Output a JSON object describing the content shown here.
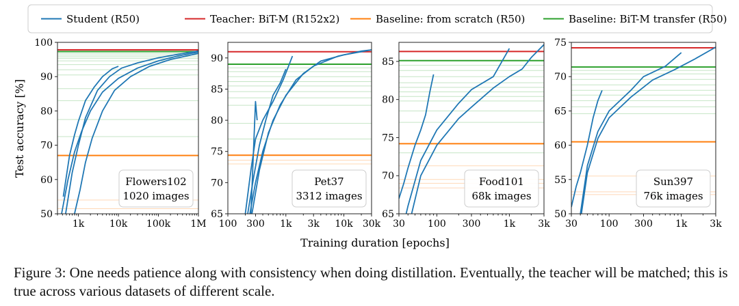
{
  "legend": [
    {
      "label": "Student (R50)",
      "color": "#1f77b4"
    },
    {
      "label": "Teacher: BiT-M (R152x2)",
      "color": "#d62728"
    },
    {
      "label": "Baseline: from scratch (R50)",
      "color": "#ff7f0e"
    },
    {
      "label": "Baseline: BiT-M transfer (R50)",
      "color": "#2ca02c"
    }
  ],
  "xlabel": "Training duration [epochs]",
  "ylabel": "Test accuracy [%]",
  "caption": "Figure 3: One needs patience along with consistency when doing distillation. Eventually, the teacher will be matched; this is true across various datasets of different scale.",
  "chart_data": [
    {
      "type": "line",
      "xscale": "log",
      "box_line1": "Flowers102",
      "box_line2": "1020 images",
      "xlim": [
        300,
        1000000
      ],
      "ylim": [
        50,
        100
      ],
      "xticks": [
        1000,
        10000,
        100000,
        1000000
      ],
      "xtick_labels": [
        "1k",
        "10k",
        "100k",
        "1M"
      ],
      "yticks": [
        50,
        60,
        70,
        80,
        90,
        100
      ],
      "ytick_labels": [
        "50",
        "60",
        "70",
        "80",
        "90",
        "100"
      ],
      "teacher": 97.8,
      "transfer": 97.3,
      "scratch": 67.0,
      "transfer_faint": [
        96.8,
        96.3,
        95.8,
        95.3,
        94.6,
        93.5,
        92.0,
        90.5,
        86.5,
        83.0,
        77.5,
        72.5
      ],
      "scratch_faint": [
        54.0,
        51.5
      ],
      "student_runs": [
        [
          [
            420,
            55
          ],
          [
            600,
            67
          ],
          [
            800,
            73
          ],
          [
            1000,
            77
          ],
          [
            1500,
            83
          ],
          [
            2500,
            87
          ],
          [
            4000,
            90
          ],
          [
            7000,
            92.3
          ],
          [
            10000,
            93
          ]
        ],
        [
          [
            480,
            50
          ],
          [
            700,
            62
          ],
          [
            1000,
            70
          ],
          [
            1500,
            78
          ],
          [
            3000,
            86
          ],
          [
            6000,
            90
          ],
          [
            12000,
            92.5
          ],
          [
            30000,
            94
          ],
          [
            100000,
            95.5
          ],
          [
            300000,
            96.5
          ],
          [
            1000000,
            97.5
          ]
        ],
        [
          [
            380,
            50
          ],
          [
            550,
            60
          ],
          [
            800,
            68
          ],
          [
            1200,
            74
          ],
          [
            2000,
            80
          ],
          [
            4000,
            85.5
          ],
          [
            10000,
            89.5
          ],
          [
            30000,
            92.5
          ],
          [
            100000,
            94.6
          ],
          [
            300000,
            96
          ],
          [
            1000000,
            97.2
          ]
        ],
        [
          [
            800,
            50
          ],
          [
            1100,
            57
          ],
          [
            1500,
            65
          ],
          [
            2200,
            72
          ],
          [
            4000,
            80
          ],
          [
            8000,
            86
          ],
          [
            20000,
            90
          ],
          [
            60000,
            93
          ],
          [
            200000,
            95
          ],
          [
            1000000,
            96.8
          ]
        ]
      ]
    },
    {
      "type": "line",
      "xscale": "log",
      "box_line1": "Pet37",
      "box_line2": "3312 images",
      "xlim": [
        100,
        30000
      ],
      "ylim": [
        65,
        92.5
      ],
      "xticks": [
        100,
        300,
        1000,
        3000,
        10000,
        30000
      ],
      "xtick_labels": [
        "100",
        "300",
        "1k",
        "3k",
        "10k",
        "30k"
      ],
      "yticks": [
        65,
        70,
        75,
        80,
        85,
        90
      ],
      "ytick_labels": [
        "65",
        "70",
        "75",
        "80",
        "85",
        "90"
      ],
      "teacher": 91.0,
      "transfer": 89.0,
      "scratch": 74.4,
      "transfer_faint": [
        88.4,
        87.8,
        87.0,
        86.2,
        85.5,
        84.6,
        83.6,
        82.4,
        79.5,
        77.0
      ],
      "scratch_faint": [
        73.6,
        73.0
      ],
      "student_runs": [
        [
          [
            250,
            65
          ],
          [
            300,
            83
          ],
          [
            320,
            80
          ]
        ],
        [
          [
            200,
            65
          ],
          [
            250,
            72
          ],
          [
            300,
            77
          ],
          [
            400,
            80
          ],
          [
            600,
            83
          ],
          [
            900,
            86.5
          ],
          [
            1300,
            90.3
          ]
        ],
        [
          [
            220,
            65
          ],
          [
            280,
            71
          ],
          [
            350,
            76
          ],
          [
            450,
            80
          ],
          [
            600,
            84
          ],
          [
            800,
            86
          ],
          [
            1000,
            88.2
          ]
        ],
        [
          [
            240,
            65
          ],
          [
            300,
            70
          ],
          [
            400,
            75
          ],
          [
            600,
            80
          ],
          [
            1000,
            84
          ],
          [
            2000,
            87.5
          ],
          [
            4000,
            89.5
          ],
          [
            10000,
            90.5
          ],
          [
            30000,
            91.3
          ]
        ],
        [
          [
            260,
            65
          ],
          [
            350,
            72
          ],
          [
            500,
            78
          ],
          [
            800,
            82.5
          ],
          [
            1500,
            86.5
          ],
          [
            3000,
            88.7
          ],
          [
            8000,
            90.3
          ],
          [
            20000,
            91.1
          ],
          [
            30000,
            91.3
          ]
        ]
      ]
    },
    {
      "type": "line",
      "xscale": "log",
      "box_line1": "Food101",
      "box_line2": "68k images",
      "xlim": [
        30,
        3000
      ],
      "ylim": [
        65,
        87.5
      ],
      "xticks": [
        30,
        100,
        300,
        1000,
        3000
      ],
      "xtick_labels": [
        "30",
        "100",
        "300",
        "1k",
        "3k"
      ],
      "yticks": [
        65,
        70,
        75,
        80,
        85
      ],
      "ytick_labels": [
        "65",
        "70",
        "75",
        "80",
        "85"
      ],
      "teacher": 86.3,
      "transfer": 85.1,
      "scratch": 74.2,
      "transfer_faint": [
        84.5,
        83.8,
        83.0,
        82.2,
        81.6,
        81.0,
        80.4,
        79.8,
        78.5,
        77.0,
        73.0
      ],
      "scratch_faint": [
        71.3,
        69.5,
        69.0,
        68.4
      ],
      "student_runs": [
        [
          [
            30,
            67
          ],
          [
            35,
            69
          ],
          [
            40,
            71
          ],
          [
            50,
            74
          ],
          [
            60,
            76
          ],
          [
            70,
            78
          ],
          [
            80,
            81
          ],
          [
            90,
            83.3
          ]
        ],
        [
          [
            30,
            61
          ],
          [
            40,
            66
          ],
          [
            60,
            72
          ],
          [
            100,
            76
          ],
          [
            200,
            79.5
          ],
          [
            300,
            81.3
          ],
          [
            600,
            83
          ],
          [
            1000,
            86.7
          ]
        ],
        [
          [
            40,
            63
          ],
          [
            60,
            70
          ],
          [
            100,
            74
          ],
          [
            200,
            77.5
          ],
          [
            300,
            79
          ],
          [
            600,
            81.5
          ],
          [
            1000,
            83
          ],
          [
            1500,
            84
          ],
          [
            2000,
            85.5
          ],
          [
            3000,
            87.2
          ]
        ]
      ]
    },
    {
      "type": "line",
      "xscale": "log",
      "box_line1": "Sun397",
      "box_line2": "76k images",
      "xlim": [
        30,
        3000
      ],
      "ylim": [
        50,
        75
      ],
      "xticks": [
        30,
        100,
        300,
        1000,
        3000
      ],
      "xtick_labels": [
        "30",
        "100",
        "300",
        "1k",
        "3k"
      ],
      "yticks": [
        50,
        55,
        60,
        65,
        70,
        75
      ],
      "ytick_labels": [
        "50",
        "55",
        "60",
        "65",
        "70",
        "75"
      ],
      "teacher": 74.2,
      "transfer": 71.4,
      "scratch": 60.5,
      "transfer_faint": [
        70.9,
        70.4,
        69.6,
        68.8,
        68.0,
        67.3,
        66.5,
        65.6,
        64.6
      ],
      "scratch_faint": [
        55.5,
        53.2,
        52.8
      ],
      "student_runs": [
        [
          [
            30,
            51
          ],
          [
            35,
            54
          ],
          [
            40,
            56
          ],
          [
            50,
            60
          ],
          [
            60,
            64
          ],
          [
            70,
            66.5
          ],
          [
            80,
            68
          ]
        ],
        [
          [
            40,
            50
          ],
          [
            50,
            57
          ],
          [
            70,
            62
          ],
          [
            100,
            65
          ],
          [
            200,
            68
          ],
          [
            300,
            70
          ],
          [
            600,
            71.5
          ],
          [
            1000,
            73.5
          ]
        ],
        [
          [
            40,
            49
          ],
          [
            50,
            56
          ],
          [
            70,
            61
          ],
          [
            100,
            64
          ],
          [
            200,
            67
          ],
          [
            400,
            69.5
          ],
          [
            800,
            71
          ],
          [
            1500,
            72.5
          ],
          [
            3000,
            74.3
          ]
        ]
      ]
    }
  ]
}
